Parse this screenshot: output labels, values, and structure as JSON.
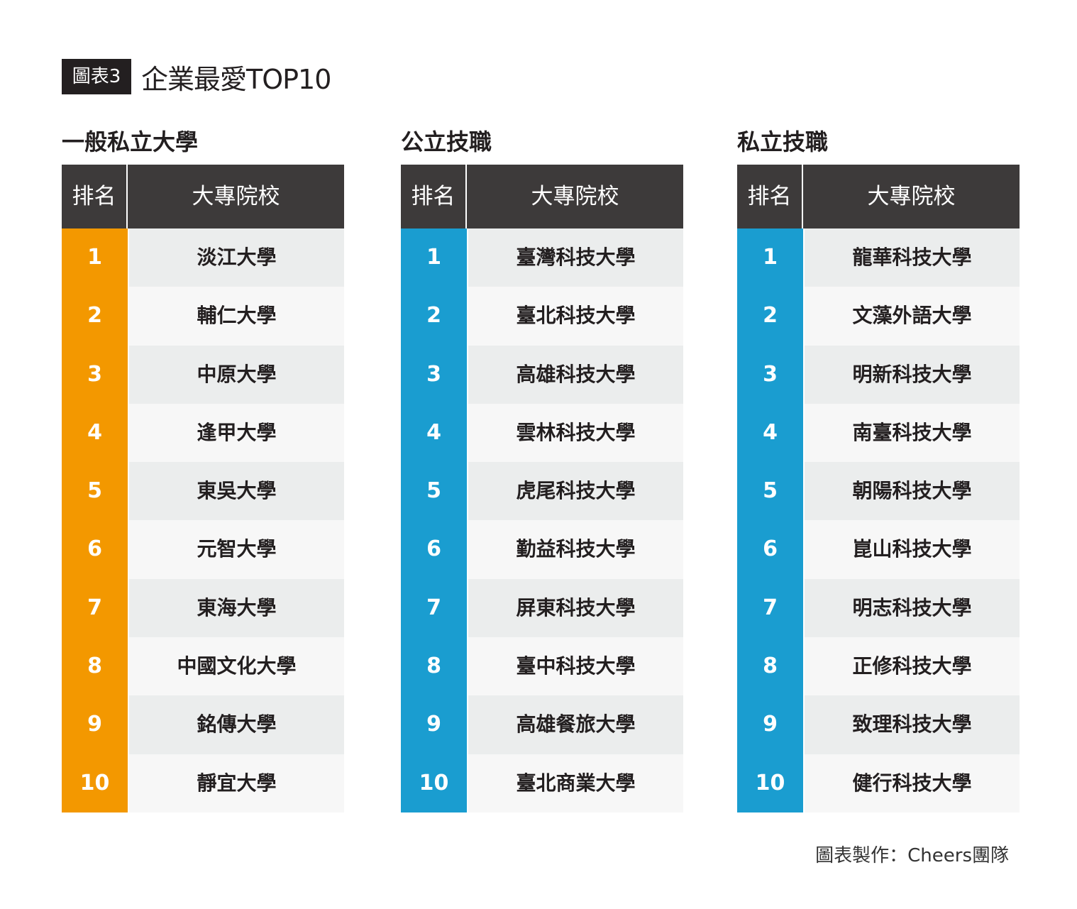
{
  "header": {
    "tag": "圖表3",
    "title": "企業最愛TOP10"
  },
  "colors": {
    "private_univ_accent": "#f39800",
    "tech_accent": "#1a9dd0",
    "header_bg": "#3d3a3a"
  },
  "chart_data": {
    "type": "table",
    "columns": [
      "排名",
      "大專院校"
    ],
    "tables": [
      {
        "name": "一般私立大學",
        "ranks": [
          "1",
          "2",
          "3",
          "4",
          "5",
          "6",
          "7",
          "8",
          "9",
          "10"
        ],
        "schools": [
          "淡江大學",
          "輔仁大學",
          "中原大學",
          "逢甲大學",
          "東吳大學",
          "元智大學",
          "東海大學",
          "中國文化大學",
          "銘傳大學",
          "靜宜大學"
        ]
      },
      {
        "name": "公立技職",
        "ranks": [
          "1",
          "2",
          "3",
          "4",
          "5",
          "6",
          "7",
          "8",
          "9",
          "10"
        ],
        "schools": [
          "臺灣科技大學",
          "臺北科技大學",
          "高雄科技大學",
          "雲林科技大學",
          "虎尾科技大學",
          "勤益科技大學",
          "屏東科技大學",
          "臺中科技大學",
          "高雄餐旅大學",
          "臺北商業大學"
        ]
      },
      {
        "name": "私立技職",
        "ranks": [
          "1",
          "2",
          "3",
          "4",
          "5",
          "6",
          "7",
          "8",
          "9",
          "10"
        ],
        "schools": [
          "龍華科技大學",
          "文藻外語大學",
          "明新科技大學",
          "南臺科技大學",
          "朝陽科技大學",
          "崑山科技大學",
          "明志科技大學",
          "正修科技大學",
          "致理科技大學",
          "健行科技大學"
        ]
      }
    ]
  },
  "footer": {
    "credit": "圖表製作：Cheers團隊"
  }
}
